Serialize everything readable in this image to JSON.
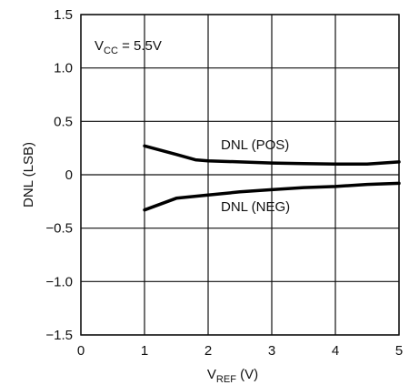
{
  "chart_data": {
    "type": "line",
    "grid": true,
    "xlim": [
      0,
      5
    ],
    "ylim": [
      -1.5,
      1.5
    ],
    "x_ticks": [
      "0",
      "1",
      "2",
      "3",
      "4",
      "5"
    ],
    "y_ticks": [
      "1.5",
      "1.0",
      "0.5",
      "0",
      "−0.5",
      "−1.0",
      "−1.5"
    ],
    "y_tick_values": [
      1.5,
      1.0,
      0.5,
      0,
      -0.5,
      -1.0,
      -1.5
    ],
    "x_tick_values": [
      0,
      1,
      2,
      3,
      4,
      5
    ],
    "ylabel": "DNL (LSB)",
    "xlabel": {
      "main": "V",
      "sub": "REF",
      "suffix": " (V)"
    },
    "annotation": {
      "main": "V",
      "sub": "CC",
      "suffix": " = 5.5V"
    },
    "series": [
      {
        "name": "DNL (POS)",
        "x": [
          1.0,
          1.5,
          1.8,
          2.0,
          2.5,
          3.0,
          3.5,
          4.0,
          4.5,
          5.0
        ],
        "y": [
          0.27,
          0.19,
          0.14,
          0.13,
          0.12,
          0.11,
          0.105,
          0.1,
          0.1,
          0.12
        ]
      },
      {
        "name": "DNL (NEG)",
        "x": [
          1.0,
          1.5,
          2.0,
          2.5,
          3.0,
          3.5,
          4.0,
          4.5,
          5.0
        ],
        "y": [
          -0.33,
          -0.22,
          -0.19,
          -0.16,
          -0.14,
          -0.12,
          -0.11,
          -0.09,
          -0.08
        ]
      }
    ]
  }
}
